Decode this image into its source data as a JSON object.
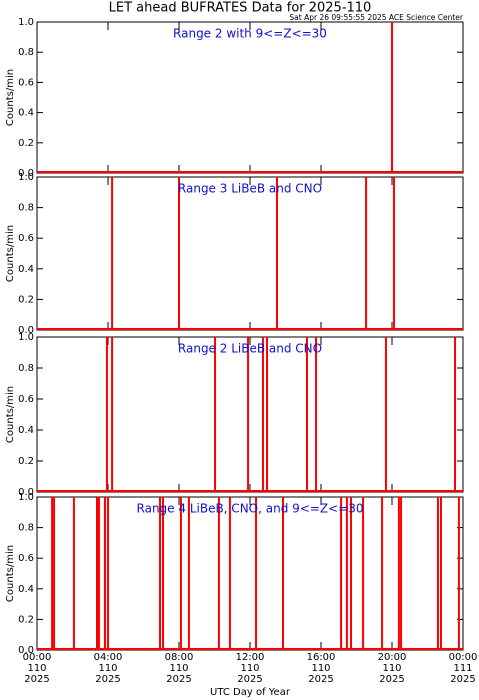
{
  "title": "LET ahead BUFRATES Data for 2025-110",
  "subtitle": "Sat Apr 26 09:55:55 2025 ACE Science Center",
  "xlabel": "UTC Day of Year",
  "chart_data": [
    {
      "type": "spike",
      "label": "Range 2 with 9<=Z<=30",
      "ylabel": "Counts/min",
      "color": "#ff0000",
      "xlim": [
        0,
        24
      ],
      "ylim": [
        0,
        1
      ],
      "yticks": [
        {
          "value": 0,
          "label": "0.0"
        },
        {
          "value": 0.2,
          "label": "0.2"
        },
        {
          "value": 0.4,
          "label": "0.4"
        },
        {
          "value": 0.6,
          "label": "0.6"
        },
        {
          "value": 0.8,
          "label": "0.8"
        },
        {
          "value": 1,
          "label": "1.0"
        }
      ],
      "x": [
        20.0
      ],
      "values": [
        1
      ]
    },
    {
      "type": "spike",
      "label": "Range 3 LiBeB and CNO",
      "ylabel": "Counts/min",
      "color": "#ff0000",
      "xlim": [
        0,
        24
      ],
      "ylim": [
        0,
        1
      ],
      "yticks": [
        {
          "value": 0,
          "label": "0.0"
        },
        {
          "value": 0.2,
          "label": "0.2"
        },
        {
          "value": 0.4,
          "label": "0.4"
        },
        {
          "value": 0.6,
          "label": "0.6"
        },
        {
          "value": 0.8,
          "label": "0.8"
        },
        {
          "value": 1,
          "label": "1.0"
        }
      ],
      "x": [
        4.23,
        8.0,
        13.52,
        18.54,
        20.11
      ],
      "values": [
        1,
        1,
        1,
        1,
        1
      ]
    },
    {
      "type": "spike",
      "label": "Range 2 LiBeB and CNO",
      "ylabel": "Counts/min",
      "color": "#ff0000",
      "xlim": [
        0,
        24
      ],
      "ylim": [
        0,
        1
      ],
      "yticks": [
        {
          "value": 0,
          "label": "0.0"
        },
        {
          "value": 0.2,
          "label": "0.2"
        },
        {
          "value": 0.4,
          "label": "0.4"
        },
        {
          "value": 0.6,
          "label": "0.6"
        },
        {
          "value": 0.8,
          "label": "0.8"
        },
        {
          "value": 1,
          "label": "1.0"
        }
      ],
      "x": [
        3.94,
        4.23,
        10.03,
        11.89,
        12.73,
        12.96,
        15.21,
        15.72,
        19.66,
        23.55
      ],
      "values": [
        1,
        1,
        1,
        1,
        1,
        1,
        1,
        1,
        1,
        1
      ]
    },
    {
      "type": "spike",
      "label": "Range 4 LiBeB, CNO, and 9<=Z<=30",
      "ylabel": "Counts/min",
      "color": "#ff0000",
      "xlim": [
        0,
        24
      ],
      "ylim": [
        0,
        1
      ],
      "yticks": [
        {
          "value": 0,
          "label": "0.0"
        },
        {
          "value": 0.2,
          "label": "0.2"
        },
        {
          "value": 0.4,
          "label": "0.4"
        },
        {
          "value": 0.6,
          "label": "0.6"
        },
        {
          "value": 0.8,
          "label": "0.8"
        },
        {
          "value": 1,
          "label": "1.0"
        }
      ],
      "xticks": [
        {
          "value": 0,
          "label": "00:00",
          "day": "110",
          "year": "2025"
        },
        {
          "value": 4,
          "label": "04:00",
          "day": "110",
          "year": "2025"
        },
        {
          "value": 8,
          "label": "08:00",
          "day": "110",
          "year": "2025"
        },
        {
          "value": 12,
          "label": "12:00",
          "day": "110",
          "year": "2025"
        },
        {
          "value": 16,
          "label": "16:00",
          "day": "110",
          "year": "2025"
        },
        {
          "value": 20,
          "label": "20:00",
          "day": "110",
          "year": "2025"
        },
        {
          "value": 24,
          "label": "00:00",
          "day": "111",
          "year": "2025"
        }
      ],
      "x": [
        0.85,
        0.96,
        2.08,
        3.38,
        3.49,
        3.83,
        4.0,
        6.93,
        7.1,
        8.11,
        8.56,
        10.25,
        10.87,
        12.34,
        13.86,
        17.13,
        17.46,
        17.69,
        18.37,
        19.44,
        20.39,
        20.51,
        22.59,
        22.76,
        23.77
      ],
      "values": [
        1,
        1,
        1,
        1,
        1,
        1,
        1,
        1,
        1,
        1,
        1,
        1,
        1,
        1,
        1,
        1,
        1,
        1,
        1,
        1,
        1,
        1,
        1,
        1,
        1
      ]
    }
  ]
}
